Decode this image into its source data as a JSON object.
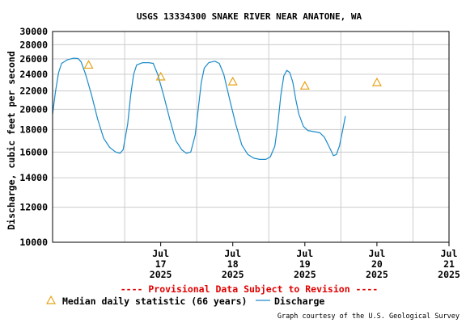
{
  "chart_data": {
    "type": "line",
    "title": "USGS 13334300 SNAKE RIVER NEAR ANATONE, WA",
    "ylabel": "Discharge, cubic feet per second",
    "xlabel": "",
    "yscale": "log",
    "ylim": [
      10000,
      30000
    ],
    "yticks": [
      "10000",
      "12000",
      "14000",
      "16000",
      "18000",
      "20000",
      "22000",
      "24000",
      "26000",
      "28000",
      "30000"
    ],
    "xticks": [
      {
        "month": "Jul",
        "day": "17",
        "year": "2025"
      },
      {
        "month": "Jul",
        "day": "18",
        "year": "2025"
      },
      {
        "month": "Jul",
        "day": "19",
        "year": "2025"
      },
      {
        "month": "Jul",
        "day": "20",
        "year": "2025"
      },
      {
        "month": "Jul",
        "day": "21",
        "year": "2025"
      }
    ],
    "xlim_hours": [
      "2025-07-16 00:00",
      "2025-07-21 12:00"
    ],
    "grid": true,
    "series": [
      {
        "name": "Discharge",
        "color": "#1a8bc9",
        "points": [
          [
            "2025-07-16 00:00",
            19500
          ],
          [
            "2025-07-16 01:00",
            22000
          ],
          [
            "2025-07-16 02:00",
            24200
          ],
          [
            "2025-07-16 03:00",
            25400
          ],
          [
            "2025-07-16 05:00",
            25900
          ],
          [
            "2025-07-16 07:00",
            26100
          ],
          [
            "2025-07-16 08:30",
            26050
          ],
          [
            "2025-07-16 09:30",
            25600
          ],
          [
            "2025-07-16 11:00",
            24000
          ],
          [
            "2025-07-16 13:00",
            21500
          ],
          [
            "2025-07-16 15:00",
            19000
          ],
          [
            "2025-07-16 17:00",
            17200
          ],
          [
            "2025-07-16 19:00",
            16400
          ],
          [
            "2025-07-16 21:00",
            16000
          ],
          [
            "2025-07-16 22:30",
            15900
          ],
          [
            "2025-07-16 23:30",
            16200
          ],
          [
            "2025-07-17 01:00",
            18500
          ],
          [
            "2025-07-17 02:00",
            21500
          ],
          [
            "2025-07-17 03:00",
            24000
          ],
          [
            "2025-07-17 04:00",
            25200
          ],
          [
            "2025-07-17 06:00",
            25500
          ],
          [
            "2025-07-17 08:00",
            25500
          ],
          [
            "2025-07-17 09:30",
            25400
          ],
          [
            "2025-07-17 11:00",
            24000
          ],
          [
            "2025-07-17 13:00",
            21500
          ],
          [
            "2025-07-17 15:00",
            19000
          ],
          [
            "2025-07-17 17:00",
            17000
          ],
          [
            "2025-07-17 19:00",
            16200
          ],
          [
            "2025-07-17 20:30",
            15900
          ],
          [
            "2025-07-17 22:00",
            16000
          ],
          [
            "2025-07-17 23:30",
            17500
          ],
          [
            "2025-07-18 00:30",
            20000
          ],
          [
            "2025-07-18 01:30",
            23000
          ],
          [
            "2025-07-18 02:30",
            24800
          ],
          [
            "2025-07-18 04:00",
            25500
          ],
          [
            "2025-07-18 06:00",
            25700
          ],
          [
            "2025-07-18 07:30",
            25400
          ],
          [
            "2025-07-18 09:00",
            24000
          ],
          [
            "2025-07-18 11:00",
            21000
          ],
          [
            "2025-07-18 13:00",
            18500
          ],
          [
            "2025-07-18 15:00",
            16600
          ],
          [
            "2025-07-18 17:00",
            15800
          ],
          [
            "2025-07-18 19:00",
            15500
          ],
          [
            "2025-07-18 21:00",
            15400
          ],
          [
            "2025-07-18 23:00",
            15400
          ],
          [
            "2025-07-19 00:30",
            15600
          ],
          [
            "2025-07-19 02:00",
            16500
          ],
          [
            "2025-07-19 03:00",
            18500
          ],
          [
            "2025-07-19 04:00",
            21500
          ],
          [
            "2025-07-19 05:00",
            23800
          ],
          [
            "2025-07-19 06:00",
            24500
          ],
          [
            "2025-07-19 07:00",
            24200
          ],
          [
            "2025-07-19 08:00",
            23000
          ],
          [
            "2025-07-19 09:00",
            21000
          ],
          [
            "2025-07-19 10:00",
            19500
          ],
          [
            "2025-07-19 11:30",
            18300
          ],
          [
            "2025-07-19 13:00",
            17900
          ],
          [
            "2025-07-19 15:00",
            17800
          ],
          [
            "2025-07-19 17:00",
            17700
          ],
          [
            "2025-07-19 18:30",
            17300
          ],
          [
            "2025-07-19 20:00",
            16500
          ],
          [
            "2025-07-19 21:30",
            15700
          ],
          [
            "2025-07-19 22:30",
            15800
          ],
          [
            "2025-07-19 23:30",
            16500
          ],
          [
            "2025-07-20 00:30",
            17800
          ],
          [
            "2025-07-20 01:30",
            19300
          ]
        ]
      },
      {
        "name": "Median daily statistic (66 years)",
        "color": "#e8a317",
        "marker": "triangle",
        "points": [
          [
            "2025-07-16 12:00",
            25200
          ],
          [
            "2025-07-17 12:00",
            23700
          ],
          [
            "2025-07-18 12:00",
            23100
          ],
          [
            "2025-07-19 12:00",
            22600
          ],
          [
            "2025-07-20 12:00",
            23000
          ]
        ]
      }
    ]
  },
  "notice": "---- Provisional Data Subject to Revision ----",
  "legend": {
    "median_label": "Median daily statistic (66 years)",
    "discharge_label": "Discharge"
  },
  "credit": "Graph courtesy of the U.S. Geological Survey"
}
